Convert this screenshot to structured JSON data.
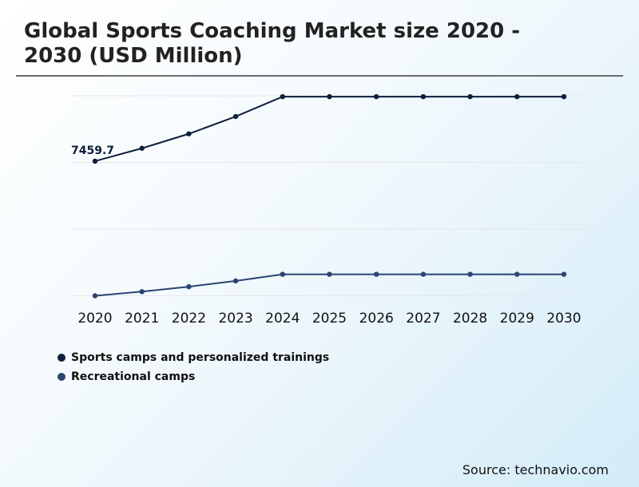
{
  "header": {
    "title": "Global Sports Coaching Market size 2020 - 2030 (USD Million)"
  },
  "source": "Source: technavio.com",
  "colors": {
    "series_1": "#0d1f3c",
    "series_2": "#2b4472",
    "grid": "#e6e6e6"
  },
  "chart_data": {
    "type": "line",
    "title": "Global Sports Coaching Market size 2020 - 2030 (USD Million)",
    "x": [
      "2020",
      "2021",
      "2022",
      "2023",
      "2024",
      "2025",
      "2026",
      "2027",
      "2028",
      "2029",
      "2030"
    ],
    "grid": true,
    "legend_placement": "bottom-left",
    "series": [
      {
        "name": "Sports camps and personalized trainings",
        "values": [
          7459.7,
          7615,
          7790,
          8000,
          8240,
          8240,
          8240,
          8240,
          8240,
          8240,
          8240
        ],
        "label": "7459.7"
      },
      {
        "name": "Recreational camps",
        "values": [
          5830,
          5880,
          5940,
          6010,
          6090,
          6090,
          6090,
          6090,
          6090,
          6090,
          6090
        ]
      }
    ],
    "ylim": [
      5825,
      8260
    ]
  }
}
